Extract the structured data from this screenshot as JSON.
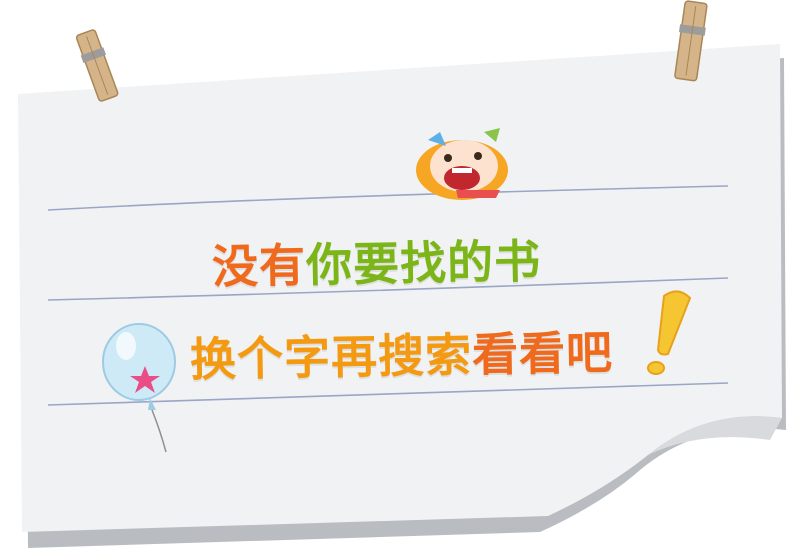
{
  "message": {
    "line1": {
      "part_a": "没有",
      "part_b": "你要找的书"
    },
    "line2": {
      "part_a": "换个字再搜索",
      "part_b": "看看吧"
    }
  },
  "colors": {
    "accent_orange": "#f06a1d",
    "accent_green": "#7cb518",
    "accent_yellow_orange": "#f39a12",
    "paper": "#f1f2f4",
    "paper_shadow": "#b9bcc1",
    "rule_line": "#9aa6c6",
    "clothespin": "#d6b48a",
    "balloon": "#cfeaf7",
    "balloon_star": "#e94f86",
    "exclamation": "#f6c532"
  },
  "icons": [
    "clothespin-icon",
    "girl-face-icon",
    "balloon-icon",
    "exclamation-icon"
  ]
}
